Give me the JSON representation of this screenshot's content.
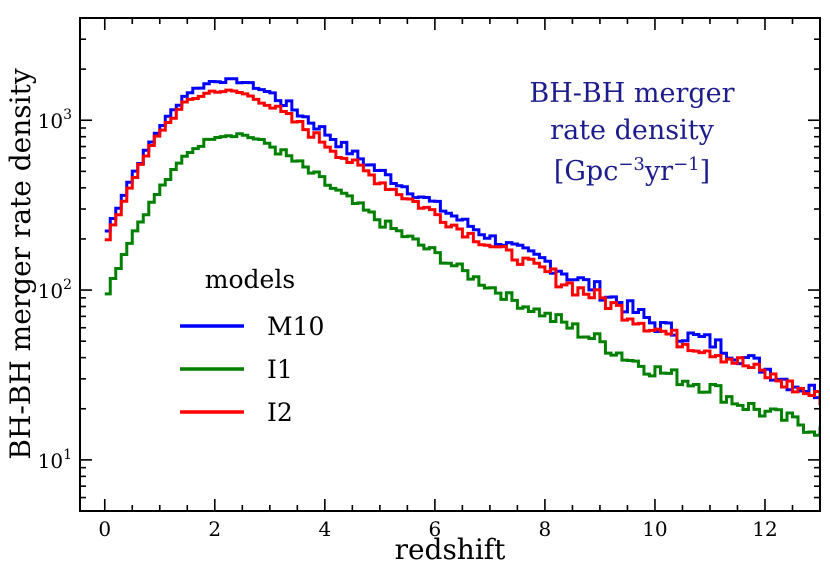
{
  "chart_data": {
    "type": "line",
    "title": "",
    "xlabel": "redshift",
    "ylabel": "BH-BH merger rate density",
    "xlim": [
      -0.45,
      13.0
    ],
    "ylim": [
      5.0,
      4000.0
    ],
    "yscale": "log",
    "grid": false,
    "x_ticks": [
      0,
      2,
      4,
      6,
      8,
      10,
      12
    ],
    "x_tick_labels": [
      "0",
      "2",
      "4",
      "6",
      "8",
      "10",
      "12"
    ],
    "y_ticks": [
      10,
      100,
      1000
    ],
    "y_tick_labels": [
      {
        "base": "10",
        "exp": "1"
      },
      {
        "base": "10",
        "exp": "2"
      },
      {
        "base": "10",
        "exp": "3"
      }
    ],
    "annotation": {
      "line1": "BH-BH merger",
      "line2": "rate density",
      "line3_a": "[Gpc",
      "line3_exp1": "−3",
      "line3_b": "yr",
      "line3_exp2": "−1",
      "line3_c": "]",
      "color": "#1c1c8c"
    },
    "legend": {
      "title": "models",
      "location": "center-left"
    },
    "series": [
      {
        "name": "M10",
        "color": "#0000ff",
        "x": [
          0.0,
          0.5,
          1.0,
          1.5,
          2.0,
          2.5,
          3.0,
          3.5,
          4.0,
          4.5,
          5.0,
          5.5,
          6.0,
          6.5,
          7.0,
          7.5,
          8.0,
          8.5,
          9.0,
          9.5,
          10.0,
          10.5,
          11.0,
          11.5,
          12.0,
          12.5,
          13.0
        ],
        "values": [
          205,
          470,
          900,
          1450,
          1720,
          1700,
          1450,
          1130,
          860,
          640,
          500,
          400,
          320,
          255,
          205,
          175,
          150,
          120,
          100,
          80,
          63,
          55,
          50,
          42,
          35,
          28,
          25
        ]
      },
      {
        "name": "I1",
        "color": "#008000",
        "x": [
          0.0,
          0.5,
          1.0,
          1.5,
          2.0,
          2.5,
          3.0,
          3.5,
          4.0,
          4.5,
          5.0,
          5.5,
          6.0,
          6.5,
          7.0,
          7.5,
          8.0,
          8.5,
          9.0,
          9.5,
          10.0,
          10.5,
          11.0,
          11.5,
          12.0,
          12.5,
          13.0
        ],
        "values": [
          90,
          210,
          390,
          640,
          810,
          830,
          720,
          560,
          430,
          330,
          255,
          205,
          165,
          130,
          105,
          85,
          72,
          60,
          50,
          40,
          34,
          30,
          27,
          22,
          19,
          17,
          15
        ]
      },
      {
        "name": "I2",
        "color": "#ff0000",
        "x": [
          0.0,
          0.5,
          1.0,
          1.5,
          2.0,
          2.5,
          3.0,
          3.5,
          4.0,
          4.5,
          5.0,
          5.5,
          6.0,
          6.5,
          7.0,
          7.5,
          8.0,
          8.5,
          9.0,
          9.5,
          10.0,
          10.5,
          11.0,
          11.5,
          12.0,
          12.5,
          13.0
        ],
        "values": [
          180,
          440,
          850,
          1300,
          1500,
          1450,
          1230,
          960,
          740,
          560,
          440,
          350,
          285,
          225,
          185,
          155,
          130,
          105,
          90,
          73,
          60,
          50,
          45,
          38,
          32,
          27,
          23
        ]
      }
    ]
  }
}
